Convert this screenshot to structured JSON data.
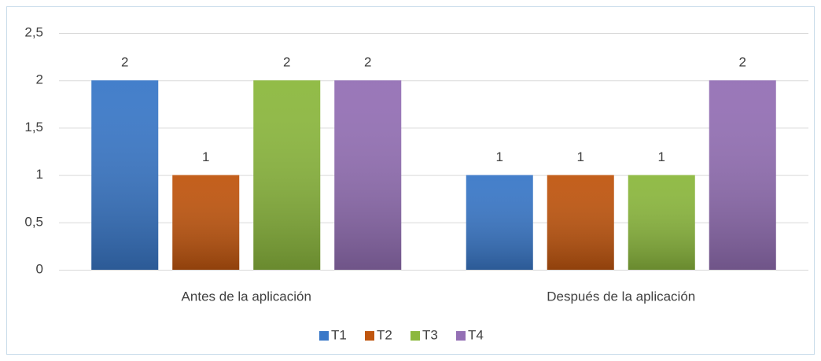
{
  "chart_data": {
    "type": "bar",
    "categories": [
      "Antes de la aplicación",
      "Después de la aplicación"
    ],
    "series": [
      {
        "name": "T1",
        "color": "#3a78c8",
        "values": [
          2,
          1
        ]
      },
      {
        "name": "T2",
        "color": "#c0560f",
        "values": [
          1,
          1
        ]
      },
      {
        "name": "T3",
        "color": "#8cb83e",
        "values": [
          2,
          1
        ]
      },
      {
        "name": "T4",
        "color": "#9470b5",
        "values": [
          2,
          2
        ]
      }
    ],
    "ylim": [
      0,
      2.5
    ],
    "yticks": [
      0,
      {
        "value": 0.5,
        "label": "0,5"
      },
      1,
      {
        "value": 1.5,
        "label": "1,5"
      },
      2,
      {
        "value": 2.5,
        "label": "2,5"
      }
    ],
    "grid": true,
    "legend": "bottom"
  }
}
